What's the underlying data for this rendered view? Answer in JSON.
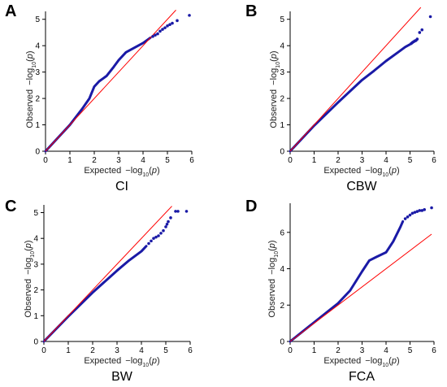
{
  "colors": {
    "points": "#1a1aa6",
    "reference_line": "#ff0000"
  },
  "chart_data": [
    {
      "type": "scatter",
      "panel_letter": "A",
      "caption": "CI",
      "xlabel": "Expected  -log10(p)",
      "ylabel": "Observed  -log10(p)",
      "xlim": [
        0,
        6
      ],
      "ylim": [
        0,
        5.3
      ],
      "xticks": [
        0,
        1,
        2,
        3,
        4,
        5,
        6
      ],
      "yticks": [
        0,
        1,
        2,
        3,
        4,
        5
      ],
      "grid": false,
      "reference_line": {
        "x": [
          0,
          5.35
        ],
        "y": [
          0,
          5.35
        ]
      },
      "curve": {
        "x": [
          0,
          0.5,
          1.0,
          1.5,
          1.8,
          2.0,
          2.2,
          2.5,
          2.8,
          3.0,
          3.3,
          3.6,
          4.0,
          4.3
        ],
        "y": [
          0,
          0.5,
          1.0,
          1.6,
          2.0,
          2.45,
          2.65,
          2.85,
          3.2,
          3.45,
          3.75,
          3.9,
          4.1,
          4.3
        ]
      },
      "tail_points": {
        "x": [
          4.4,
          4.5,
          4.6,
          4.7,
          4.8,
          4.9,
          5.0,
          5.1,
          5.2,
          5.4,
          5.9
        ],
        "y": [
          4.35,
          4.4,
          4.45,
          4.55,
          4.62,
          4.68,
          4.75,
          4.8,
          4.85,
          4.95,
          5.15
        ]
      }
    },
    {
      "type": "scatter",
      "panel_letter": "B",
      "caption": "CBW",
      "xlabel": "Expected  -log10(p)",
      "ylabel": "Observed  -log10(p)",
      "xlim": [
        0,
        6
      ],
      "ylim": [
        0,
        5.3
      ],
      "xticks": [
        0,
        1,
        2,
        3,
        4,
        5,
        6
      ],
      "yticks": [
        0,
        1,
        2,
        3,
        4,
        5
      ],
      "grid": false,
      "reference_line": {
        "x": [
          0,
          5.45
        ],
        "y": [
          0,
          5.45
        ]
      },
      "curve": {
        "x": [
          0,
          1.0,
          2.0,
          3.0,
          3.5,
          4.0,
          4.5,
          4.8,
          5.0
        ],
        "y": [
          0,
          0.97,
          1.85,
          2.7,
          3.05,
          3.42,
          3.75,
          3.95,
          4.05
        ]
      },
      "tail_points": {
        "x": [
          5.05,
          5.1,
          5.15,
          5.2,
          5.25,
          5.3,
          5.4,
          5.5,
          5.85
        ],
        "y": [
          4.08,
          4.12,
          4.15,
          4.18,
          4.2,
          4.25,
          4.5,
          4.6,
          5.1
        ]
      }
    },
    {
      "type": "scatter",
      "panel_letter": "C",
      "caption": "BW",
      "xlabel": "Expected  -log10(p)",
      "ylabel": "Observed  -log10(p)",
      "xlim": [
        0,
        6
      ],
      "ylim": [
        0,
        5.3
      ],
      "xticks": [
        0,
        1,
        2,
        3,
        4,
        5,
        6
      ],
      "yticks": [
        0,
        1,
        2,
        3,
        4,
        5
      ],
      "grid": false,
      "reference_line": {
        "x": [
          0,
          5.25
        ],
        "y": [
          0,
          5.25
        ]
      },
      "curve": {
        "x": [
          0,
          1.0,
          2.0,
          3.0,
          3.5,
          4.0,
          4.2
        ],
        "y": [
          0,
          0.97,
          1.9,
          2.75,
          3.15,
          3.5,
          3.7
        ]
      },
      "tail_points": {
        "x": [
          4.3,
          4.4,
          4.5,
          4.6,
          4.7,
          4.8,
          4.9,
          5.0,
          5.05,
          5.1,
          5.2,
          5.4,
          5.5,
          5.85
        ],
        "y": [
          3.8,
          3.9,
          4.0,
          4.05,
          4.1,
          4.2,
          4.3,
          4.45,
          4.55,
          4.65,
          4.8,
          5.05,
          5.05,
          5.05
        ]
      }
    },
    {
      "type": "scatter",
      "panel_letter": "D",
      "caption": "FCA",
      "xlabel": "Expected  -log10(p)",
      "ylabel": "Observed  -log10(p)",
      "xlim": [
        0,
        6
      ],
      "ylim": [
        0,
        7.6
      ],
      "xticks": [
        0,
        1,
        2,
        3,
        4,
        5,
        6
      ],
      "yticks": [
        0,
        2,
        4,
        6
      ],
      "grid": false,
      "reference_line": {
        "x": [
          0,
          5.9
        ],
        "y": [
          0,
          5.9
        ]
      },
      "curve": {
        "x": [
          0,
          1.0,
          2.0,
          2.5,
          3.0,
          3.3,
          3.6,
          4.0,
          4.3,
          4.6,
          4.7
        ],
        "y": [
          0,
          1.05,
          2.1,
          2.8,
          3.85,
          4.45,
          4.65,
          4.9,
          5.5,
          6.3,
          6.6
        ]
      },
      "tail_points": {
        "x": [
          4.8,
          4.9,
          5.0,
          5.1,
          5.2,
          5.3,
          5.4,
          5.5,
          5.6,
          5.9
        ],
        "y": [
          6.75,
          6.85,
          6.95,
          7.05,
          7.1,
          7.15,
          7.2,
          7.2,
          7.25,
          7.35
        ]
      }
    }
  ]
}
